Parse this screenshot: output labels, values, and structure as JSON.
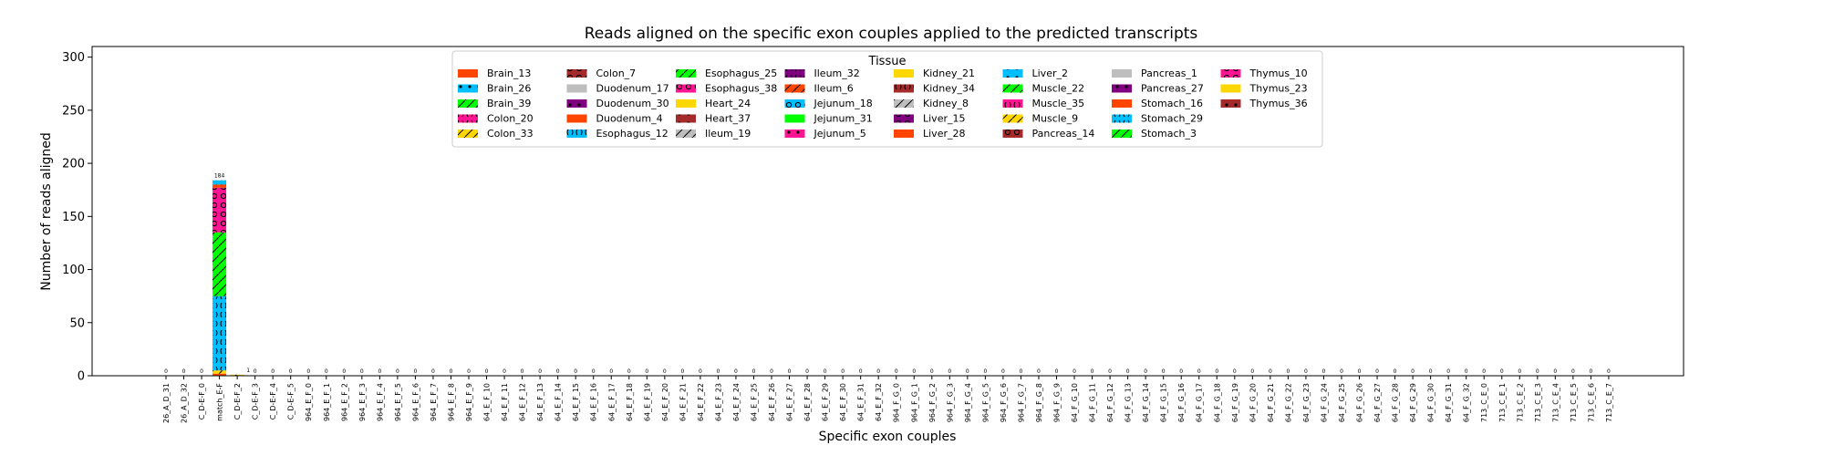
{
  "chart_data": {
    "type": "bar",
    "title": "Reads aligned on the specific exon couples applied to the predicted transcripts",
    "xlabel": "Specific exon couples",
    "ylabel": "Number of reads aligned",
    "ylim": [
      0,
      310
    ],
    "yticks": [
      0,
      50,
      100,
      150,
      200,
      250,
      300
    ],
    "grid": false,
    "legend": {
      "title": "Tissue",
      "placement": "top-center",
      "columns": 8
    },
    "categories": [
      "26_A_D_31",
      "26_A_D_32",
      "C_D-E-F_0",
      "match_E-F",
      "C_D-E-F_2",
      "C_D-E-F_3",
      "C_D-E-F_4",
      "C_D-E-F_5",
      "964_E_F_0",
      "964_E_F_1",
      "964_E_F_2",
      "964_E_F_3",
      "964_E_F_4",
      "964_E_F_5",
      "964_E_F_6",
      "964_E_F_7",
      "964_E_F_8",
      "964_E_F_9",
      "64_E_F_10",
      "64_E_F_11",
      "64_E_F_12",
      "64_E_F_13",
      "64_E_F_14",
      "64_E_F_15",
      "64_E_F_16",
      "64_E_F_17",
      "64_E_F_18",
      "64_E_F_19",
      "64_E_F_20",
      "64_E_F_21",
      "64_E_F_22",
      "64_E_F_23",
      "64_E_F_24",
      "64_E_F_25",
      "64_E_F_26",
      "64_E_F_27",
      "64_E_F_28",
      "64_E_F_29",
      "64_E_F_30",
      "64_E_F_31",
      "64_E_F_32",
      "964_F_G_0",
      "964_F_G_1",
      "964_F_G_2",
      "964_F_G_3",
      "964_F_G_4",
      "964_F_G_5",
      "964_F_G_6",
      "964_F_G_7",
      "964_F_G_8",
      "964_F_G_9",
      "64_F_G_10",
      "64_F_G_11",
      "64_F_G_12",
      "64_F_G_13",
      "64_F_G_14",
      "64_F_G_15",
      "64_F_G_16",
      "64_F_G_17",
      "64_F_G_18",
      "64_F_G_19",
      "64_F_G_20",
      "64_F_G_21",
      "64_F_G_22",
      "64_F_G_23",
      "64_F_G_24",
      "64_F_G_25",
      "64_F_G_26",
      "64_F_G_27",
      "64_F_G_28",
      "64_F_G_29",
      "64_F_G_30",
      "64_F_G_31",
      "64_F_G_32",
      "713_C_E_0",
      "713_C_E_1",
      "713_C_E_2",
      "713_C_E_3",
      "713_C_E_4",
      "713_C_E_5",
      "713_C_E_6",
      "713_C_E_7"
    ],
    "totals": [
      0,
      0,
      0,
      184,
      1,
      0,
      0,
      0,
      0,
      0,
      0,
      0,
      0,
      0,
      0,
      0,
      0,
      0,
      0,
      0,
      0,
      0,
      0,
      0,
      0,
      0,
      0,
      0,
      0,
      0,
      0,
      0,
      0,
      0,
      0,
      0,
      0,
      0,
      0,
      0,
      0,
      0,
      0,
      0,
      0,
      0,
      0,
      0,
      0,
      0,
      0,
      0,
      0,
      0,
      0,
      0,
      0,
      0,
      0,
      0,
      0,
      0,
      0,
      0,
      0,
      0,
      0,
      0,
      0,
      0,
      0,
      0,
      0,
      0,
      0,
      0,
      0,
      0,
      0,
      0,
      0,
      0
    ],
    "stacks": [
      {
        "category": "match_E-F",
        "segments": [
          {
            "series": "Brain_13",
            "value": 2
          },
          {
            "series": "Colon_33",
            "value": 3
          },
          {
            "series": "Esophagus_12",
            "value": 70
          },
          {
            "series": "Esophagus_25",
            "value": 60
          },
          {
            "series": "Thymus_10",
            "value": 42
          },
          {
            "series": "Stomach_16",
            "value": 3
          },
          {
            "series": "Stomach_29",
            "value": 4
          }
        ]
      },
      {
        "category": "C_D-E-F_2",
        "segments": [
          {
            "series": "Colon_33",
            "value": 1
          }
        ]
      }
    ],
    "series": [
      {
        "name": "Brain_13",
        "color": "#ff4500",
        "pattern": "none"
      },
      {
        "name": "Brain_26",
        "color": "#00bfff",
        "pattern": "dot"
      },
      {
        "name": "Brain_39",
        "color": "#00ff00",
        "pattern": "slash"
      },
      {
        "name": "Colon_20",
        "color": "#ff1493",
        "pattern": "bracket"
      },
      {
        "name": "Colon_33",
        "color": "#ffd700",
        "pattern": "slash"
      },
      {
        "name": "Colon_7",
        "color": "#a52a2a",
        "pattern": "circle"
      },
      {
        "name": "Duodenum_17",
        "color": "#bebebe",
        "pattern": "none"
      },
      {
        "name": "Duodenum_30",
        "color": "#800080",
        "pattern": "dot"
      },
      {
        "name": "Duodenum_4",
        "color": "#ff4500",
        "pattern": "none"
      },
      {
        "name": "Esophagus_12",
        "color": "#00bfff",
        "pattern": "bracket"
      },
      {
        "name": "Esophagus_25",
        "color": "#00ff00",
        "pattern": "slash"
      },
      {
        "name": "Esophagus_38",
        "color": "#ff1493",
        "pattern": "circle"
      },
      {
        "name": "Heart_24",
        "color": "#ffd700",
        "pattern": "none"
      },
      {
        "name": "Heart_37",
        "color": "#a52a2a",
        "pattern": "dot"
      },
      {
        "name": "Ileum_19",
        "color": "#bebebe",
        "pattern": "slash"
      },
      {
        "name": "Ileum_32",
        "color": "#800080",
        "pattern": "bracket"
      },
      {
        "name": "Ileum_6",
        "color": "#ff4500",
        "pattern": "slash"
      },
      {
        "name": "Jejunum_18",
        "color": "#00bfff",
        "pattern": "circle"
      },
      {
        "name": "Jejunum_31",
        "color": "#00ff00",
        "pattern": "none"
      },
      {
        "name": "Jejunum_5",
        "color": "#ff1493",
        "pattern": "dot"
      },
      {
        "name": "Kidney_21",
        "color": "#ffd700",
        "pattern": "none"
      },
      {
        "name": "Kidney_34",
        "color": "#a52a2a",
        "pattern": "bracket"
      },
      {
        "name": "Kidney_8",
        "color": "#bebebe",
        "pattern": "slash"
      },
      {
        "name": "Liver_15",
        "color": "#800080",
        "pattern": "circle"
      },
      {
        "name": "Liver_28",
        "color": "#ff4500",
        "pattern": "none"
      },
      {
        "name": "Liver_2",
        "color": "#00bfff",
        "pattern": "dot"
      },
      {
        "name": "Muscle_22",
        "color": "#00ff00",
        "pattern": "slash"
      },
      {
        "name": "Muscle_35",
        "color": "#ff1493",
        "pattern": "bracket"
      },
      {
        "name": "Muscle_9",
        "color": "#ffd700",
        "pattern": "slash"
      },
      {
        "name": "Pancreas_14",
        "color": "#a52a2a",
        "pattern": "circle"
      },
      {
        "name": "Pancreas_1",
        "color": "#bebebe",
        "pattern": "none"
      },
      {
        "name": "Pancreas_27",
        "color": "#800080",
        "pattern": "dot"
      },
      {
        "name": "Stomach_16",
        "color": "#ff4500",
        "pattern": "none"
      },
      {
        "name": "Stomach_29",
        "color": "#00bfff",
        "pattern": "bracket"
      },
      {
        "name": "Stomach_3",
        "color": "#00ff00",
        "pattern": "slash"
      },
      {
        "name": "Thymus_10",
        "color": "#ff1493",
        "pattern": "circle"
      },
      {
        "name": "Thymus_23",
        "color": "#ffd700",
        "pattern": "none"
      },
      {
        "name": "Thymus_36",
        "color": "#a52a2a",
        "pattern": "dot"
      }
    ]
  }
}
